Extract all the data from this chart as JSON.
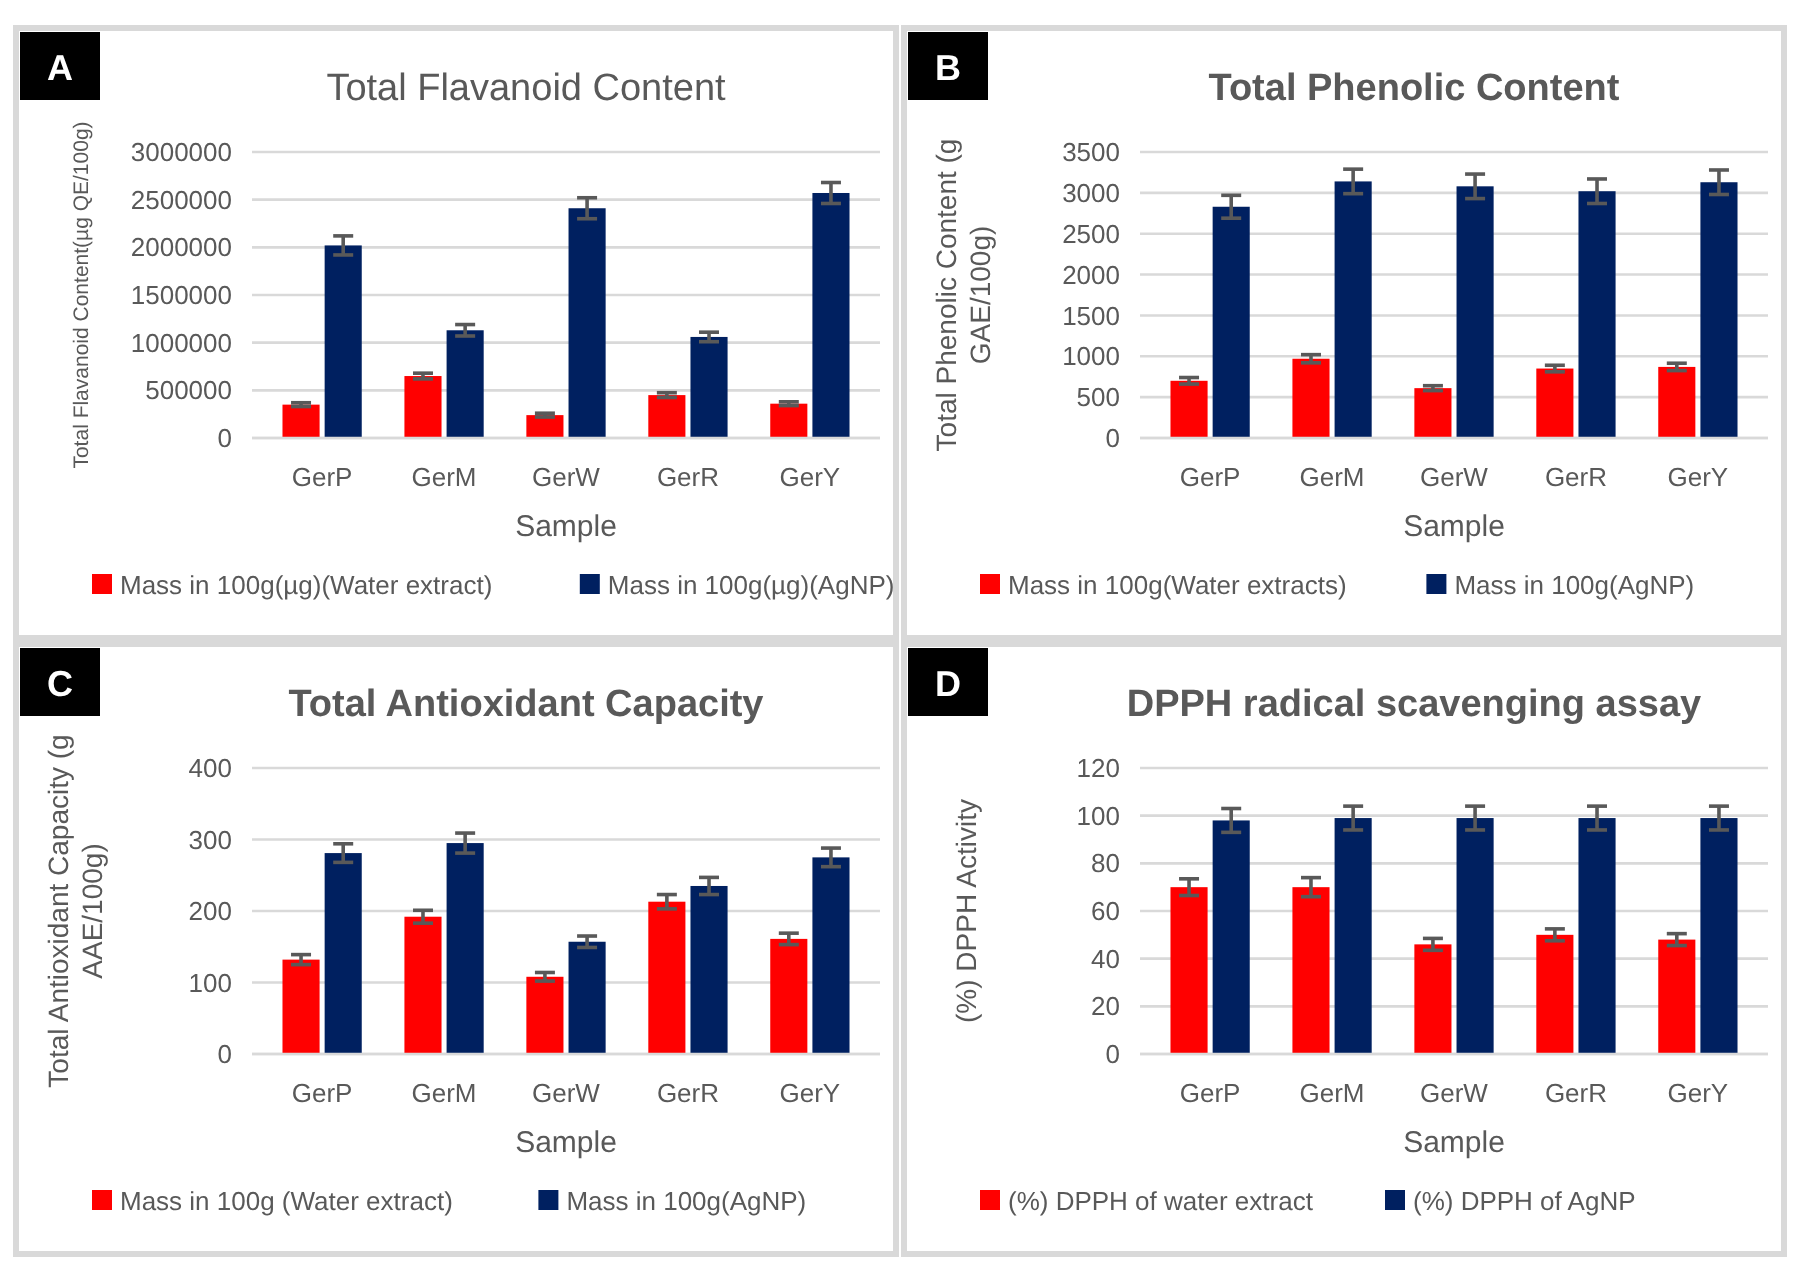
{
  "chart_data": [
    {
      "type": "bar",
      "title": "Total Flavanoid Content",
      "xlabel": "Sample",
      "ylabel": "Total Flavanoid Content(µg QE/100g)",
      "annotations": [
        "A"
      ],
      "categories": [
        "GerP",
        "GerM",
        "GerW",
        "GerR",
        "GerY"
      ],
      "ylim": [
        0,
        3000000
      ],
      "yticks": [
        0,
        500000,
        1000000,
        1500000,
        2000000,
        2500000,
        3000000
      ],
      "grid": "y",
      "legend": "bottom",
      "series": [
        {
          "name": "Mass in 100g(µg)(Water extract)",
          "color": "#ff0000",
          "values": [
            350000,
            650000,
            240000,
            450000,
            360000
          ],
          "errors": [
            20000,
            30000,
            20000,
            25000,
            20000
          ]
        },
        {
          "name": "Mass in 100g(µg)(AgNP)",
          "color": "#002060",
          "values": [
            2020000,
            1130000,
            2410000,
            1060000,
            2570000
          ],
          "errors": [
            100000,
            60000,
            110000,
            50000,
            110000
          ]
        }
      ]
    },
    {
      "type": "bar",
      "title": "Total Phenolic Content",
      "xlabel": "Sample",
      "ylabel": "Total Phenolic Content (g GAE/100g)",
      "annotations": [
        "B"
      ],
      "categories": [
        "GerP",
        "GerM",
        "GerW",
        "GerR",
        "GerY"
      ],
      "ylim": [
        0,
        3500
      ],
      "yticks": [
        0,
        500,
        1000,
        1500,
        2000,
        2500,
        3000,
        3500
      ],
      "grid": "y",
      "legend": "bottom",
      "series": [
        {
          "name": "Mass in 100g(Water extracts)",
          "color": "#ff0000",
          "values": [
            700,
            970,
            610,
            850,
            870
          ],
          "errors": [
            40,
            50,
            30,
            40,
            45
          ]
        },
        {
          "name": "Mass in 100g(AgNP)",
          "color": "#002060",
          "values": [
            2830,
            3140,
            3080,
            3020,
            3130
          ],
          "errors": [
            140,
            150,
            150,
            150,
            150
          ]
        }
      ]
    },
    {
      "type": "bar",
      "title": "Total Antioxidant Capacity",
      "xlabel": "Sample",
      "ylabel": "Total Antioxidant Capacity (g AAE/100g)",
      "annotations": [
        "C"
      ],
      "categories": [
        "GerP",
        "GerM",
        "GerW",
        "GerR",
        "GerY"
      ],
      "ylim": [
        0,
        400
      ],
      "yticks": [
        0,
        100,
        200,
        300,
        400
      ],
      "grid": "y",
      "legend": "bottom",
      "series": [
        {
          "name": "Mass in 100g (Water extract)",
          "color": "#ff0000",
          "values": [
            132,
            192,
            108,
            213,
            161
          ],
          "errors": [
            7,
            9,
            6,
            10,
            8
          ]
        },
        {
          "name": "Mass in 100g(AgNP)",
          "color": "#002060",
          "values": [
            281,
            295,
            157,
            235,
            275
          ],
          "errors": [
            13,
            14,
            8,
            12,
            13
          ]
        }
      ]
    },
    {
      "type": "bar",
      "title": "DPPH radical scavenging assay",
      "xlabel": "Sample",
      "ylabel": "(%) DPPH Activity",
      "annotations": [
        "D"
      ],
      "categories": [
        "GerP",
        "GerM",
        "GerW",
        "GerR",
        "GerY"
      ],
      "ylim": [
        0,
        120
      ],
      "yticks": [
        0,
        20,
        40,
        60,
        80,
        100,
        120
      ],
      "grid": "y",
      "legend": "bottom",
      "series": [
        {
          "name": "(%) DPPH of water extract",
          "color": "#ff0000",
          "values": [
            70,
            70,
            46,
            50,
            48
          ],
          "errors": [
            3.5,
            4,
            2.5,
            2.5,
            2.5
          ]
        },
        {
          "name": "(%) DPPH of AgNP",
          "color": "#002060",
          "values": [
            98,
            99,
            99,
            99,
            99
          ],
          "errors": [
            5,
            5,
            5,
            5,
            5
          ]
        }
      ]
    }
  ]
}
